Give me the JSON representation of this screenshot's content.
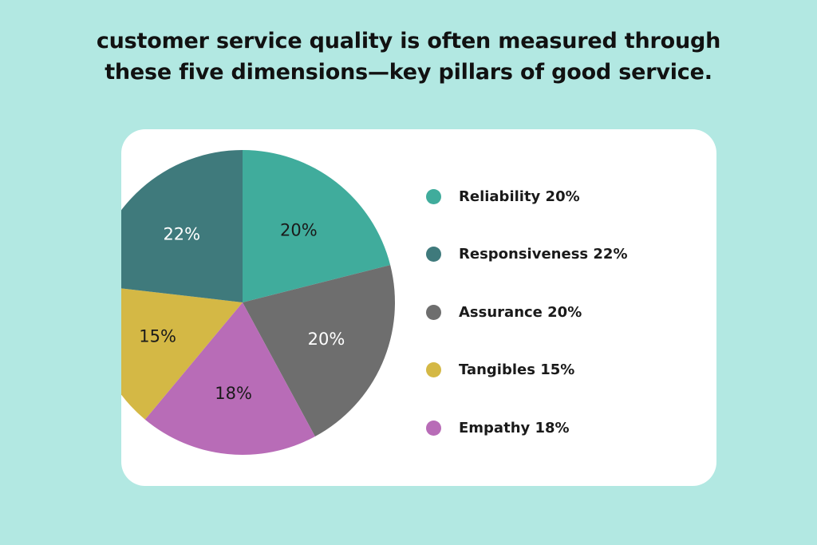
{
  "title": {
    "line1": "customer service quality is often measured through",
    "line2": "these five dimensions—key pillars of good service."
  },
  "chart_data": {
    "type": "pie",
    "title": "customer service quality is often measured through these five dimensions—key pillars of good service.",
    "start": "top, clockwise",
    "legend_position": "right",
    "slices": [
      {
        "name": "Reliability",
        "value": 20,
        "label": "20%",
        "legend": "Reliability 20%",
        "color": "#40ac9c",
        "label_color": "#1a1a1a"
      },
      {
        "name": "Assurance",
        "value": 20,
        "label": "20%",
        "legend": "Assurance 20%",
        "color": "#6e6e6e",
        "label_color": "#ffffff"
      },
      {
        "name": "Empathy",
        "value": 18,
        "label": "18%",
        "legend": "Empathy 18%",
        "color": "#b86cb7",
        "label_color": "#1a1a1a"
      },
      {
        "name": "Tangibles",
        "value": 15,
        "label": "15%",
        "legend": "Tangibles 15%",
        "color": "#d4b845",
        "label_color": "#1a1a1a"
      },
      {
        "name": "Responsiveness",
        "value": 22,
        "label": "22%",
        "legend": "Responsiveness 22%",
        "color": "#3f7a7c",
        "label_color": "#ffffff"
      }
    ],
    "legend_order": [
      "Reliability",
      "Responsiveness",
      "Assurance",
      "Tangibles",
      "Empathy"
    ]
  }
}
